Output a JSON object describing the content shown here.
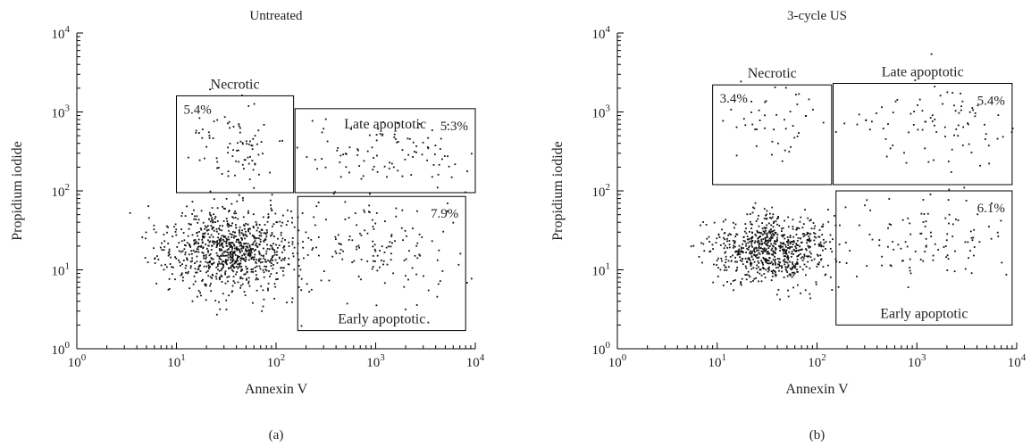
{
  "chart_data": [
    {
      "type": "scatter",
      "panel_label": "(a)",
      "title": "Untreated",
      "xlabel": "Annexin V",
      "ylabel": "Propidium iodide",
      "x_scale": "log",
      "y_scale": "log",
      "xlim": [
        1,
        10000
      ],
      "ylim": [
        1,
        10000
      ],
      "x_ticks": [
        {
          "base": "10",
          "exp": "0"
        },
        {
          "base": "10",
          "exp": "1"
        },
        {
          "base": "10",
          "exp": "2"
        },
        {
          "base": "10",
          "exp": "3"
        },
        {
          "base": "10",
          "exp": "4"
        }
      ],
      "y_ticks": [
        {
          "base": "10",
          "exp": "0"
        },
        {
          "base": "10",
          "exp": "1"
        },
        {
          "base": "10",
          "exp": "2"
        },
        {
          "base": "10",
          "exp": "3"
        },
        {
          "base": "10",
          "exp": "4"
        }
      ],
      "grid": false,
      "gates": [
        {
          "name": "Necrotic",
          "percent": "5.4%",
          "x": [
            10,
            150
          ],
          "y": [
            95,
            1600
          ]
        },
        {
          "name": "Late apoptotic",
          "percent": "5.3%",
          "x": [
            155,
            10000
          ],
          "y": [
            95,
            1100
          ]
        },
        {
          "name": "Early apoptotic",
          "percent": "7.9%",
          "x": [
            165,
            8000
          ],
          "y": [
            1.7,
            85
          ]
        }
      ],
      "clusters": [
        {
          "cx": 35,
          "cy": 18,
          "sx": 0.33,
          "sy": 0.26,
          "n": 900
        },
        {
          "cx": 40,
          "cy": 400,
          "sx": 0.2,
          "sy": 0.22,
          "n": 80
        },
        {
          "cx": 1200,
          "cy": 300,
          "sx": 0.45,
          "sy": 0.2,
          "n": 100
        },
        {
          "cx": 1100,
          "cy": 20,
          "sx": 0.45,
          "sy": 0.32,
          "n": 150
        }
      ],
      "seed": 17
    },
    {
      "type": "scatter",
      "panel_label": "(b)",
      "title": "3-cycle US",
      "xlabel": "Annexin V",
      "ylabel": "Propidium iodide",
      "x_scale": "log",
      "y_scale": "log",
      "xlim": [
        1,
        10000
      ],
      "ylim": [
        1,
        10000
      ],
      "x_ticks": [
        {
          "base": "10",
          "exp": "0"
        },
        {
          "base": "10",
          "exp": "1"
        },
        {
          "base": "10",
          "exp": "2"
        },
        {
          "base": "10",
          "exp": "3"
        },
        {
          "base": "10",
          "exp": "4"
        }
      ],
      "y_ticks": [
        {
          "base": "10",
          "exp": "0"
        },
        {
          "base": "10",
          "exp": "1"
        },
        {
          "base": "10",
          "exp": "2"
        },
        {
          "base": "10",
          "exp": "3"
        },
        {
          "base": "10",
          "exp": "4"
        }
      ],
      "grid": false,
      "gates": [
        {
          "name": "Necrotic",
          "percent": "3.4%",
          "x": [
            9,
            140
          ],
          "y": [
            120,
            2200
          ]
        },
        {
          "name": "Late apoptotic",
          "percent": "5.4%",
          "x": [
            145,
            9000
          ],
          "y": [
            120,
            2300
          ]
        },
        {
          "name": "Early apoptotic",
          "percent": "6.1%",
          "x": [
            155,
            9000
          ],
          "y": [
            2,
            100
          ]
        }
      ],
      "clusters": [
        {
          "cx": 35,
          "cy": 18,
          "sx": 0.3,
          "sy": 0.22,
          "n": 750
        },
        {
          "cx": 40,
          "cy": 800,
          "sx": 0.22,
          "sy": 0.25,
          "n": 45
        },
        {
          "cx": 1500,
          "cy": 700,
          "sx": 0.4,
          "sy": 0.25,
          "n": 90
        },
        {
          "cx": 1200,
          "cy": 25,
          "sx": 0.4,
          "sy": 0.3,
          "n": 110
        }
      ],
      "seed": 41
    }
  ]
}
